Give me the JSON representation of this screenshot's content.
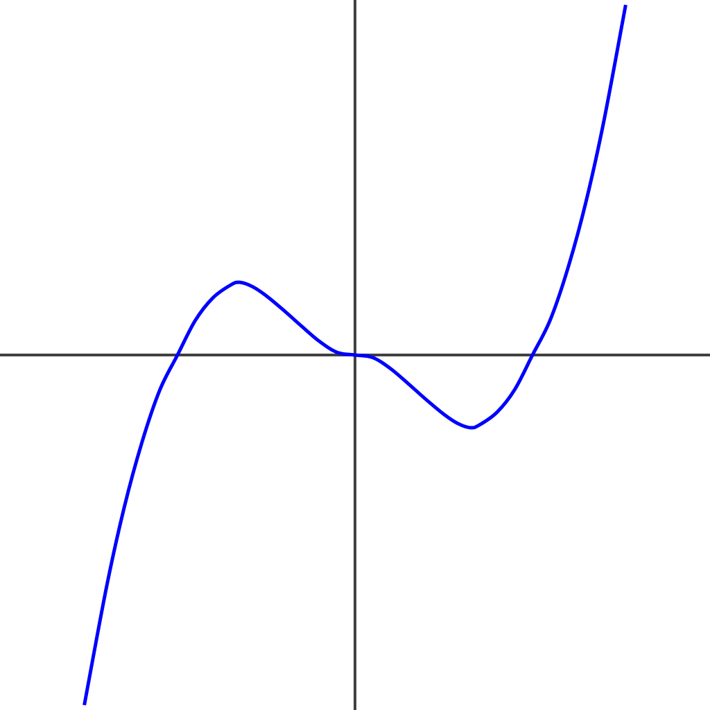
{
  "chart_data": {
    "type": "line",
    "title": "",
    "xlabel": "",
    "ylabel": "",
    "xlim": [
      -4,
      4
    ],
    "ylim": [
      -4,
      4
    ],
    "grid": false,
    "axes_color": "#404040",
    "series": [
      {
        "color": "#0000ff",
        "x": [
          -3.05,
          -2.8,
          -2.6,
          -2.4,
          -2.2,
          -2.0,
          -1.8,
          -1.6,
          -1.4,
          -1.3,
          -1.155,
          -1.0,
          -0.8,
          -0.6,
          -0.4,
          -0.2,
          0.0,
          0.2,
          0.4,
          0.6,
          0.8,
          1.0,
          1.155,
          1.3,
          1.4,
          1.6,
          1.8,
          2.0,
          2.2,
          2.4,
          2.6,
          2.8,
          3.05
        ],
        "y": [
          -3.945,
          -2.615,
          -1.716,
          -0.982,
          -0.396,
          0.0,
          0.389,
          0.645,
          0.789,
          0.819,
          0.77,
          0.667,
          0.501,
          0.323,
          0.153,
          0.029,
          0.0,
          -0.029,
          -0.153,
          -0.323,
          -0.501,
          -0.667,
          -0.77,
          -0.819,
          -0.789,
          -0.645,
          -0.389,
          0.0,
          0.396,
          0.982,
          1.716,
          2.615,
          3.945
        ]
      }
    ]
  }
}
